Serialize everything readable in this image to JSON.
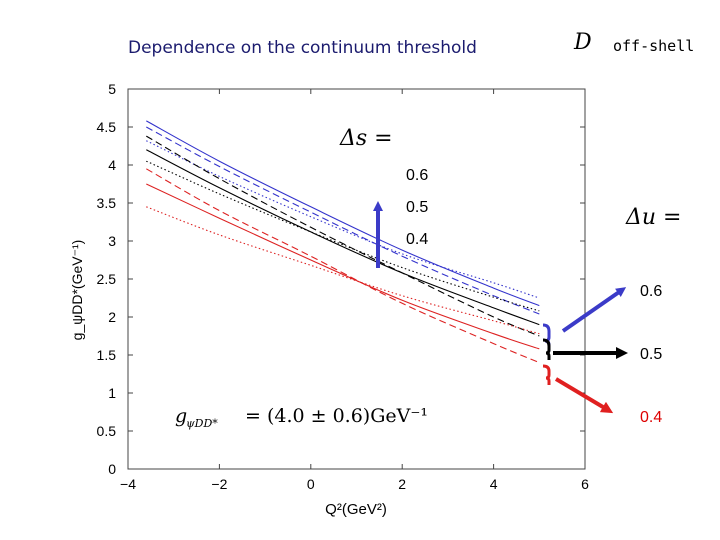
{
  "slide": {
    "title": "Dependence on the continuum threshold",
    "d_symbol": "D",
    "off_shell": "off-shell"
  },
  "chart_data": {
    "type": "line",
    "title": "",
    "xlabel": "Q²(GeV²)",
    "ylabel": "g_ψDD*(GeV⁻¹)",
    "xlim": [
      -4,
      6
    ],
    "ylim": [
      0,
      5
    ],
    "xticks": [
      -4,
      -2,
      0,
      2,
      4,
      6
    ],
    "xtick_labels": [
      "−4",
      "−2",
      "0",
      "2",
      "4",
      "6"
    ],
    "yticks": [
      0,
      0.5,
      1,
      1.5,
      2,
      2.5,
      3,
      3.5,
      4,
      4.5,
      5
    ],
    "ytick_labels": [
      "0",
      "0.5",
      "1",
      "1.5",
      "2",
      "2.5",
      "3",
      "3.5",
      "4",
      "4.5",
      "5"
    ],
    "grid": false,
    "series": [
      {
        "color": "#3333cc",
        "style": "solid",
        "x": [
          -3.6,
          -2,
          0,
          2,
          4,
          5
        ],
        "y": [
          4.58,
          4.05,
          3.45,
          2.88,
          2.38,
          2.15
        ]
      },
      {
        "color": "#3333cc",
        "style": "dashed",
        "x": [
          -3.6,
          -2,
          0,
          2,
          4,
          5
        ],
        "y": [
          4.5,
          3.98,
          3.38,
          2.8,
          2.28,
          2.04
        ]
      },
      {
        "color": "#3333cc",
        "style": "dotted",
        "x": [
          -3.6,
          -2,
          0,
          2,
          4,
          5
        ],
        "y": [
          4.32,
          3.85,
          3.32,
          2.83,
          2.45,
          2.25
        ]
      },
      {
        "color": "#000000",
        "style": "solid",
        "x": [
          -3.6,
          -2,
          0,
          2,
          4,
          5
        ],
        "y": [
          4.2,
          3.7,
          3.12,
          2.58,
          2.12,
          1.9
        ]
      },
      {
        "color": "#000000",
        "style": "dashed",
        "x": [
          -3.6,
          -2,
          0,
          2,
          4,
          5
        ],
        "y": [
          4.38,
          3.82,
          3.18,
          2.58,
          2.0,
          1.75
        ]
      },
      {
        "color": "#000000",
        "style": "dotted",
        "x": [
          -3.6,
          -2,
          0,
          2,
          4,
          5
        ],
        "y": [
          4.05,
          3.62,
          3.12,
          2.65,
          2.26,
          2.08
        ]
      },
      {
        "color": "#dd2222",
        "style": "solid",
        "x": [
          -3.6,
          -2,
          0,
          2,
          4,
          5
        ],
        "y": [
          3.75,
          3.3,
          2.75,
          2.22,
          1.78,
          1.58
        ]
      },
      {
        "color": "#dd2222",
        "style": "dashed",
        "x": [
          -3.6,
          -2,
          0,
          2,
          4,
          5
        ],
        "y": [
          3.95,
          3.4,
          2.8,
          2.18,
          1.65,
          1.4
        ]
      },
      {
        "color": "#dd2222",
        "style": "dotted",
        "x": [
          -3.6,
          -2,
          0,
          2,
          4,
          5
        ],
        "y": [
          3.45,
          3.08,
          2.68,
          2.28,
          1.95,
          1.78
        ]
      }
    ],
    "annotations": {
      "delta_s_label": "Δs =",
      "delta_s_values": [
        "0.6",
        "0.5",
        "0.4"
      ],
      "delta_u_label": "Δu =",
      "delta_u_values": [
        {
          "text": "0.6",
          "color": "#000000"
        },
        {
          "text": "0.5",
          "color": "#000000"
        },
        {
          "text": "0.4",
          "color": "#dd0000"
        }
      ],
      "coupling_lhs": "g",
      "coupling_sub": "ψDD*",
      "coupling_rhs": " = (4.0 ± 0.6)GeV⁻¹"
    }
  }
}
